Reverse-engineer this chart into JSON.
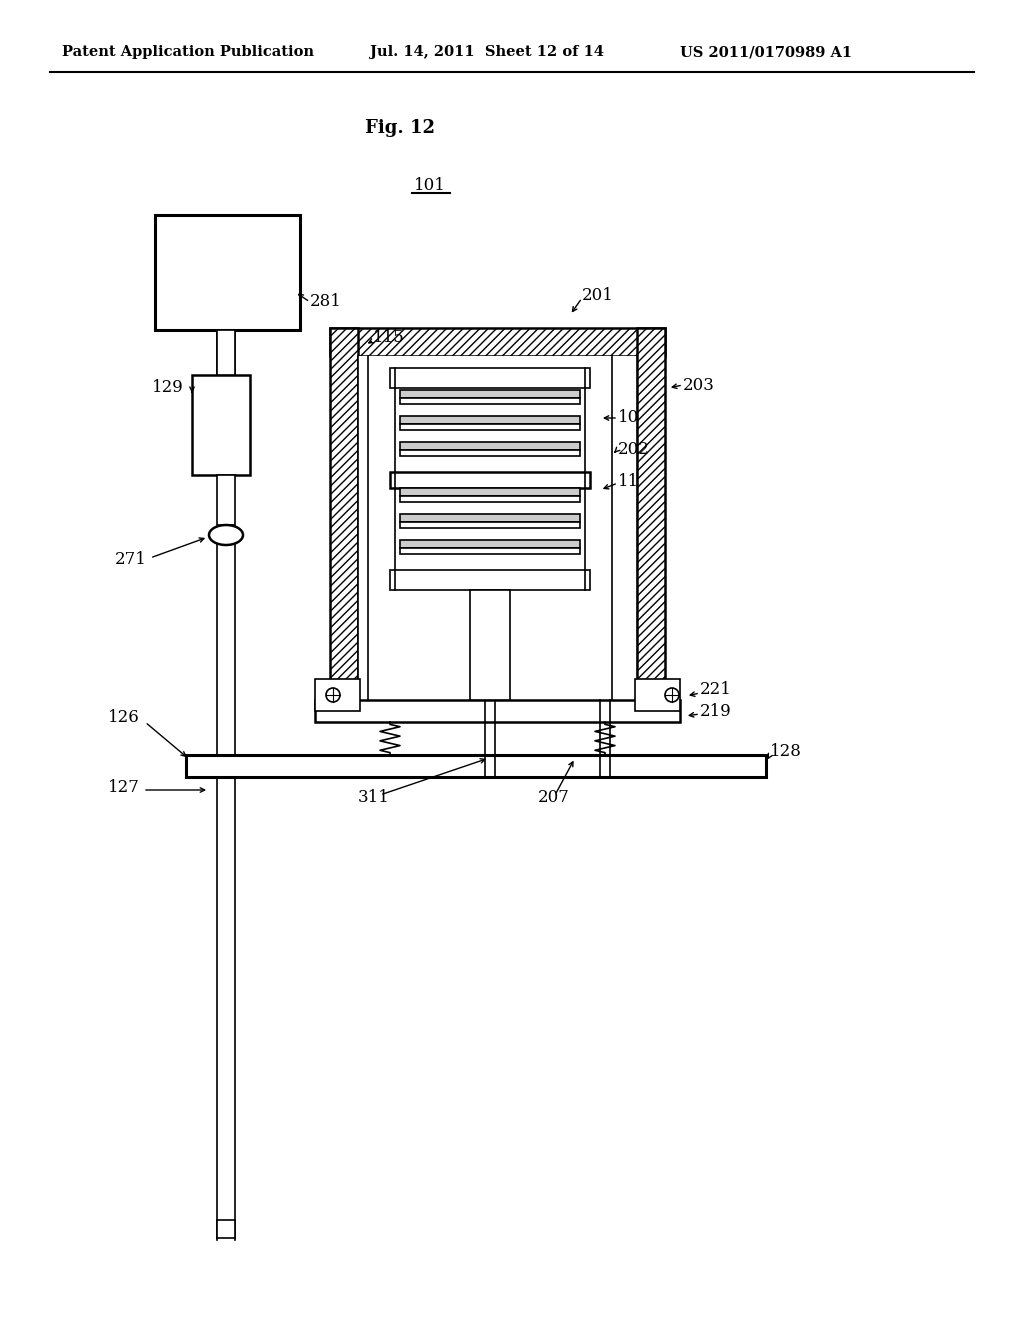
{
  "bg_color": "#ffffff",
  "header_left": "Patent Application Publication",
  "header_center": "Jul. 14, 2011  Sheet 12 of 14",
  "header_right": "US 2011/0170989 A1",
  "fig_label": "Fig. 12",
  "ref_101": "101",
  "ref_281": "281",
  "ref_115": "115",
  "ref_201": "201",
  "ref_203": "203",
  "ref_10": "10",
  "ref_202": "202",
  "ref_11": "11",
  "ref_221": "221",
  "ref_219": "219",
  "ref_271": "271",
  "ref_126": "126",
  "ref_127": "127",
  "ref_128": "128",
  "ref_207": "207",
  "ref_311": "311",
  "ref_129": "129"
}
